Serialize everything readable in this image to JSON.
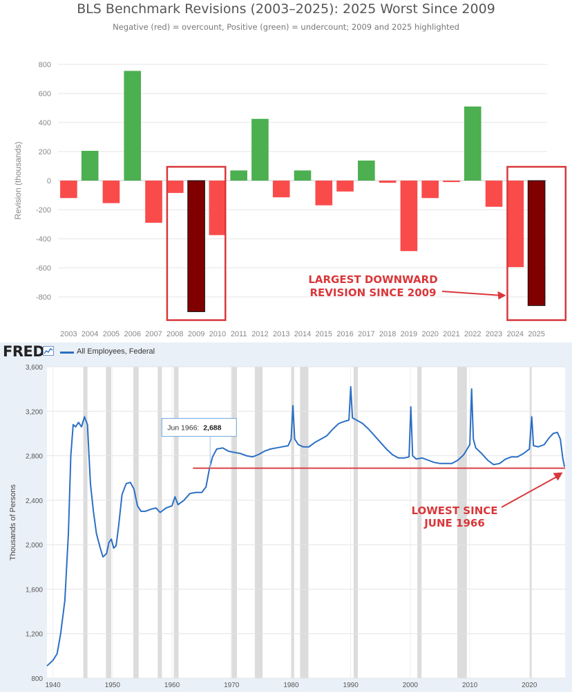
{
  "chart_data": [
    {
      "type": "bar",
      "title": "BLS Benchmark Revisions (2003–2025): 2025 Worst Since 2009",
      "subtitle": "Negative (red) = overcount, Positive (green) = undercount; 2009 and 2025 highlighted",
      "ylabel": "Revision (thousands)",
      "xlabel": "",
      "ylim": [
        -1000,
        850
      ],
      "yticks": [
        800,
        600,
        400,
        200,
        0,
        -200,
        -400,
        -600,
        -800
      ],
      "grid": true,
      "categories": [
        "2003",
        "2004",
        "2005",
        "2006",
        "2007",
        "2008",
        "2009",
        "2010",
        "2011",
        "2012",
        "2013",
        "2014",
        "2015",
        "2016",
        "2017",
        "2018",
        "2019",
        "2020",
        "2021",
        "2022",
        "2023",
        "2024",
        "2025"
      ],
      "values": [
        -120,
        205,
        -155,
        755,
        -290,
        -85,
        -902,
        -375,
        70,
        425,
        -115,
        70,
        -170,
        -75,
        138,
        -15,
        -485,
        -120,
        -10,
        510,
        -180,
        -595,
        -860
      ],
      "highlighted": [
        "2009",
        "2025"
      ],
      "colors": {
        "positive": "#4caf50",
        "negative": "#fa4b4b",
        "highlight": "#800000",
        "highlight_box": "#d9373a"
      },
      "annotation": {
        "lines": [
          "LARGEST DOWNWARD",
          "REVISION SINCE 2009"
        ],
        "target": "2025"
      }
    },
    {
      "type": "line",
      "source_label": "FRED",
      "series": [
        {
          "name": "All Employees, Federal",
          "color": "#2a6fc4",
          "points": [
            [
              1939.0,
              910
            ],
            [
              1940.0,
              960
            ],
            [
              1940.7,
              1020
            ],
            [
              1941.3,
              1200
            ],
            [
              1942.0,
              1500
            ],
            [
              1942.6,
              2100
            ],
            [
              1943.0,
              2800
            ],
            [
              1943.4,
              3080
            ],
            [
              1943.8,
              3060
            ],
            [
              1944.3,
              3100
            ],
            [
              1944.8,
              3060
            ],
            [
              1945.3,
              3150
            ],
            [
              1945.8,
              3080
            ],
            [
              1946.3,
              2550
            ],
            [
              1946.8,
              2300
            ],
            [
              1947.3,
              2100
            ],
            [
              1947.9,
              1980
            ],
            [
              1948.4,
              1890
            ],
            [
              1949.0,
              1920
            ],
            [
              1949.4,
              2020
            ],
            [
              1949.8,
              2050
            ],
            [
              1950.2,
              1970
            ],
            [
              1950.6,
              1990
            ],
            [
              1951.0,
              2150
            ],
            [
              1951.6,
              2450
            ],
            [
              1952.3,
              2550
            ],
            [
              1953.0,
              2560
            ],
            [
              1953.6,
              2500
            ],
            [
              1954.2,
              2350
            ],
            [
              1954.8,
              2300
            ],
            [
              1955.5,
              2300
            ],
            [
              1956.5,
              2320
            ],
            [
              1957.3,
              2330
            ],
            [
              1958.0,
              2290
            ],
            [
              1959.0,
              2330
            ],
            [
              1960.0,
              2350
            ],
            [
              1960.5,
              2430
            ],
            [
              1961.0,
              2360
            ],
            [
              1962.0,
              2400
            ],
            [
              1963.0,
              2460
            ],
            [
              1964.0,
              2470
            ],
            [
              1965.0,
              2470
            ],
            [
              1965.7,
              2520
            ],
            [
              1966.3,
              2688
            ],
            [
              1966.8,
              2790
            ],
            [
              1967.5,
              2860
            ],
            [
              1968.5,
              2870
            ],
            [
              1969.5,
              2840
            ],
            [
              1970.5,
              2830
            ],
            [
              1971.5,
              2820
            ],
            [
              1972.5,
              2800
            ],
            [
              1973.5,
              2790
            ],
            [
              1974.5,
              2810
            ],
            [
              1975.5,
              2840
            ],
            [
              1976.5,
              2860
            ],
            [
              1977.5,
              2870
            ],
            [
              1978.5,
              2880
            ],
            [
              1979.5,
              2890
            ],
            [
              1980.0,
              2950
            ],
            [
              1980.3,
              3250
            ],
            [
              1980.6,
              2950
            ],
            [
              1981.2,
              2900
            ],
            [
              1982.0,
              2880
            ],
            [
              1983.0,
              2880
            ],
            [
              1984.0,
              2920
            ],
            [
              1985.0,
              2950
            ],
            [
              1986.0,
              2980
            ],
            [
              1987.0,
              3040
            ],
            [
              1988.0,
              3090
            ],
            [
              1989.0,
              3110
            ],
            [
              1989.7,
              3120
            ],
            [
              1990.0,
              3420
            ],
            [
              1990.3,
              3140
            ],
            [
              1991.0,
              3120
            ],
            [
              1992.0,
              3090
            ],
            [
              1993.0,
              3040
            ],
            [
              1994.0,
              2980
            ],
            [
              1995.0,
              2920
            ],
            [
              1996.0,
              2860
            ],
            [
              1997.0,
              2810
            ],
            [
              1998.0,
              2780
            ],
            [
              1999.0,
              2780
            ],
            [
              1999.8,
              2790
            ],
            [
              2000.1,
              3240
            ],
            [
              2000.4,
              2800
            ],
            [
              2001.0,
              2770
            ],
            [
              2002.0,
              2780
            ],
            [
              2003.0,
              2760
            ],
            [
              2004.0,
              2740
            ],
            [
              2005.0,
              2730
            ],
            [
              2006.0,
              2730
            ],
            [
              2007.0,
              2730
            ],
            [
              2008.0,
              2760
            ],
            [
              2009.0,
              2810
            ],
            [
              2010.0,
              2900
            ],
            [
              2010.3,
              3400
            ],
            [
              2010.6,
              2950
            ],
            [
              2011.0,
              2870
            ],
            [
              2012.0,
              2820
            ],
            [
              2013.0,
              2760
            ],
            [
              2014.0,
              2720
            ],
            [
              2015.0,
              2730
            ],
            [
              2016.0,
              2770
            ],
            [
              2017.0,
              2790
            ],
            [
              2018.0,
              2790
            ],
            [
              2019.0,
              2820
            ],
            [
              2020.0,
              2860
            ],
            [
              2020.4,
              3150
            ],
            [
              2020.7,
              2890
            ],
            [
              2021.5,
              2880
            ],
            [
              2022.5,
              2900
            ],
            [
              2023.3,
              2960
            ],
            [
              2024.0,
              3000
            ],
            [
              2024.7,
              3010
            ],
            [
              2025.2,
              2950
            ],
            [
              2025.6,
              2780
            ],
            [
              2025.9,
              2700
            ]
          ]
        }
      ],
      "ylabel": "Thousands of Persons",
      "ylim": [
        800,
        3600
      ],
      "yticks": [
        800,
        1200,
        1600,
        2000,
        2400,
        2800,
        3200,
        3600
      ],
      "xlim": [
        1939,
        2026
      ],
      "xticks": [
        1940,
        1950,
        1960,
        1970,
        1980,
        1990,
        2000,
        2010,
        2020
      ],
      "grid": true,
      "recessions": [
        [
          1945.1,
          1945.8
        ],
        [
          1948.9,
          1949.8
        ],
        [
          1953.5,
          1954.4
        ],
        [
          1957.6,
          1958.3
        ],
        [
          1960.3,
          1961.1
        ],
        [
          1969.9,
          1970.9
        ],
        [
          1973.9,
          1975.2
        ],
        [
          1980.0,
          1980.5
        ],
        [
          1981.5,
          1982.9
        ],
        [
          1990.5,
          1991.2
        ],
        [
          2001.2,
          2001.9
        ],
        [
          2007.9,
          2009.5
        ],
        [
          2020.1,
          2020.4
        ]
      ],
      "tooltip": {
        "date_label": "Jun 1966:",
        "value_label": "2,688",
        "x": 1966.4,
        "y": 2688
      },
      "reference_line": {
        "y": 2688,
        "from_x": 1963.5,
        "color": "#d9373a"
      },
      "annotation": {
        "lines": [
          "LOWEST SINCE",
          "JUNE 1966"
        ]
      }
    }
  ]
}
